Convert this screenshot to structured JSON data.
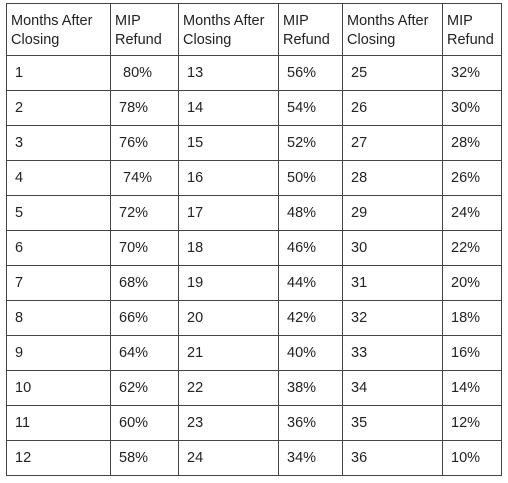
{
  "table": {
    "headers": [
      [
        "Months After",
        "Closing"
      ],
      [
        "MIP",
        "Refund"
      ],
      [
        "Months After",
        "Closing"
      ],
      [
        "MIP",
        "Refund"
      ],
      [
        "Months After",
        "Closing"
      ],
      [
        "MIP",
        "Refund"
      ]
    ],
    "rows": [
      [
        "1",
        " 80%",
        "13",
        "56%",
        "25",
        "32%"
      ],
      [
        "2",
        "78%",
        "14",
        "54%",
        "26",
        "30%"
      ],
      [
        "3",
        "76%",
        "15",
        "52%",
        "27",
        "28%"
      ],
      [
        "4",
        " 74%",
        "16",
        "50%",
        "28",
        "26%"
      ],
      [
        "5",
        "72%",
        "17",
        "48%",
        "29",
        "24%"
      ],
      [
        "6",
        "70%",
        "18",
        "46%",
        "30",
        "22%"
      ],
      [
        "7",
        "68%",
        "19",
        "44%",
        "31",
        "20%"
      ],
      [
        "8",
        "66%",
        "20",
        "42%",
        "32",
        "18%"
      ],
      [
        "9",
        "64%",
        "21",
        "40%",
        "33",
        "16%"
      ],
      [
        "10",
        "62%",
        "22",
        "38%",
        "34",
        "14%"
      ],
      [
        "11",
        "60%",
        "23",
        "36%",
        "35",
        "12%"
      ],
      [
        "12",
        "58%",
        "24",
        "34%",
        "36",
        "10%"
      ]
    ]
  }
}
